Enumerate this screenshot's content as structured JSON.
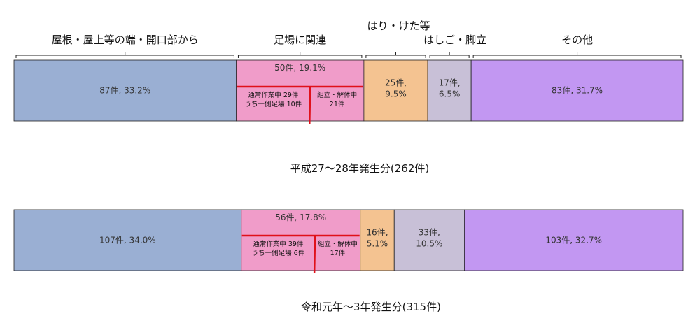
{
  "chart_data": [
    {
      "type": "bar",
      "orientation": "horizontal-stacked",
      "caption": "平成27～28年発生分(262件)",
      "categories": [
        "屋根・屋上等の端・開口部から",
        "足場に関連",
        "はり・けた等",
        "はしご・脚立",
        "その他"
      ],
      "values": [
        87,
        50,
        25,
        17,
        83
      ],
      "percent": [
        33.2,
        19.1,
        9.5,
        6.5,
        31.7
      ],
      "labels": [
        "87件, 33.2%",
        "50件, 19.1%",
        "25件,|9.5%",
        "17件,|6.5%",
        "83件, 31.7%"
      ],
      "colors": [
        "#9aafd3",
        "#f09cc9",
        "#f4c391",
        "#c8c0d7",
        "#c297f2"
      ],
      "scaffold_detail": {
        "left": [
          "通常作業中  29件",
          "うち一側足場 10件"
        ],
        "right": [
          "組立・解体中",
          "21件"
        ],
        "split_fraction": 0.58
      }
    },
    {
      "type": "bar",
      "orientation": "horizontal-stacked",
      "caption": "令和元年～3年発生分(315件)",
      "categories": [
        "屋根・屋上等の端・開口部から",
        "足場に関連",
        "はり・けた等",
        "はしご・脚立",
        "その他"
      ],
      "values": [
        107,
        56,
        16,
        33,
        103
      ],
      "percent": [
        34.0,
        17.8,
        5.1,
        10.5,
        32.7
      ],
      "labels": [
        "107件, 34.0%",
        "56件, 17.8%",
        "16件,|5.1%",
        "33件,|10.5%",
        "103件, 32.7%"
      ],
      "colors": [
        "#9aafd3",
        "#f09cc9",
        "#f4c391",
        "#c8c0d7",
        "#c297f2"
      ],
      "scaffold_detail": {
        "left": [
          "通常作業中 39件",
          "うち一側足場  6件"
        ],
        "right": [
          "組立・解体中",
          "17件"
        ],
        "split_fraction": 0.62
      }
    }
  ],
  "category_headers": [
    "屋根・屋上等の端・開口部から",
    "足場に関連",
    "はり・けた等",
    "はしご・脚立",
    "その他"
  ],
  "detail_line_color": "#e0101a"
}
